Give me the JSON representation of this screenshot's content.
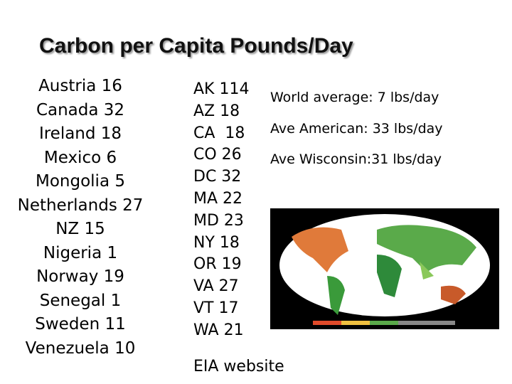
{
  "title": "Carbon per Capita Pounds/Day",
  "countries": [
    "Austria 16",
    "Canada 32",
    "Ireland 18",
    "Mexico 6",
    "Mongolia 5",
    "Netherlands 27",
    "NZ 15",
    "Nigeria 1",
    "Norway 19",
    "Senegal 1",
    "Sweden 11",
    "Venezuela 10"
  ],
  "states": [
    "AK 114",
    "AZ 18",
    "CA  18",
    "CO 26",
    "DC 32",
    "MA 22",
    "MD 23",
    "NY 18",
    "OR 19",
    "VA 27",
    "VT 17",
    "WA 21"
  ],
  "notes": [
    "World average: 7 lbs/day",
    "Ave American: 33 lbs/day",
    "Ave Wisconsin:31 lbs/day"
  ],
  "source": "EIA website"
}
